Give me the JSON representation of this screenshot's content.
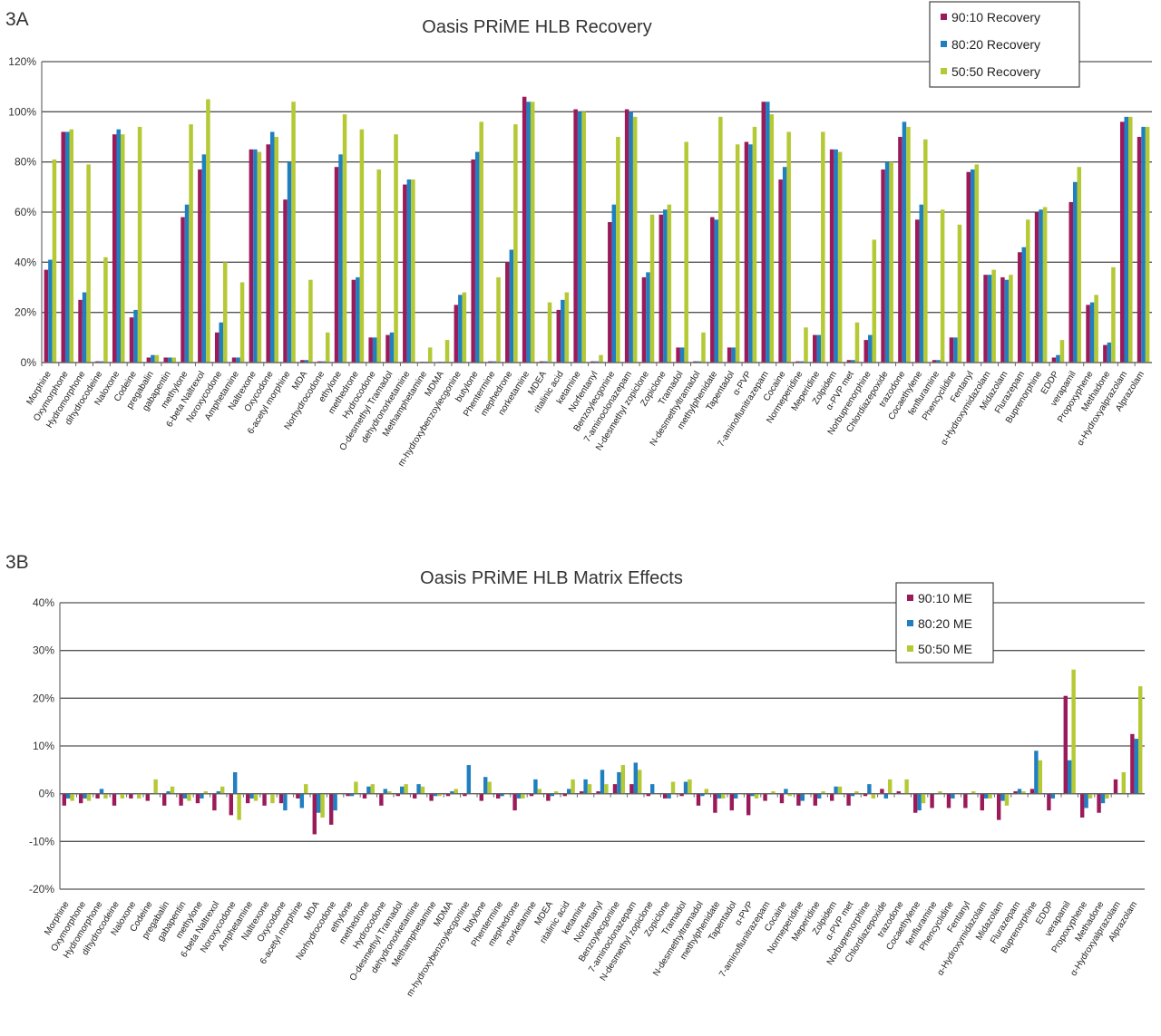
{
  "chart_data": [
    {
      "panel": "3A",
      "type": "bar",
      "title": "Oasis PRiME HLB Recovery",
      "ylim": [
        0,
        120
      ],
      "yticks": [
        "0%",
        "20%",
        "40%",
        "60%",
        "80%",
        "100%",
        "120%"
      ],
      "grid": true,
      "legend_placement": "top-right",
      "categories": [
        "Morphine",
        "Oxymorphone",
        "Hydromorphone",
        "dihydrocodeine",
        "Naloxone",
        "Codeine",
        "pregabalin",
        "gabapentin",
        "methylone",
        "6-beta Naltrexol",
        "Noroxycodone",
        "Amphetamine",
        "Naltrexone",
        "Oxycodone",
        "6-acetyl morphine",
        "MDA",
        "Norhydrocodone",
        "ethylone",
        "methedrone",
        "Hydrocodone",
        "O-desmethyl Tramadol",
        "dehydronorketamine",
        "Methamphetamine",
        "MDMA",
        "m-hydroxybenzoylecgonine",
        "butylone",
        "Phentermine",
        "mephedrone",
        "norketamine",
        "MDEA",
        "ritalinic acid",
        "ketamine",
        "Norfentanyl",
        "Benzoylecgonine",
        "7-aminoclonazepam",
        "N-desmethyl zopiclone",
        "Zopiclone",
        "Tramadol",
        "N-desmethyltramadol",
        "methylphenidate",
        "Tapentadol",
        "α-PVP",
        "7-aminoflunitrazepam",
        "Cocaine",
        "Normeperidine",
        "Meperidine",
        "Zolpidem",
        "α-PVP met",
        "Norbuprenorphine",
        "Chlordiazepoxide",
        "trazodone",
        "Cocaethylene",
        "fenfluramine",
        "Phencyclidine",
        "Fentanyl",
        "α-Hydroxymidazolam",
        "Midazolam",
        "Flurazepam",
        "Buprenorphine",
        "EDDP",
        "verapamil",
        "Propoxyphene",
        "Methadone",
        "α-Hydroxyalprazolam",
        "Alprazolam"
      ],
      "series": [
        {
          "name": "90:10 Recovery",
          "color": "#9b1b5a",
          "values": [
            37,
            92,
            25,
            0.5,
            91,
            18,
            2,
            2,
            58,
            77,
            12,
            2,
            85,
            87,
            65,
            1,
            0.5,
            78,
            33,
            10,
            11,
            71,
            0.3,
            0.3,
            23,
            81,
            0.5,
            40,
            106,
            0.5,
            21,
            101,
            0.5,
            56,
            101,
            34,
            59,
            6,
            0.5,
            58,
            6,
            88,
            104,
            73,
            0.5,
            11,
            85,
            1,
            9,
            77,
            90,
            57,
            1,
            10,
            76,
            35,
            34,
            44,
            60,
            2,
            64,
            23,
            7,
            96,
            90
          ]
        },
        {
          "name": "80:20 Recovery",
          "color": "#1f7fc0",
          "values": [
            41,
            92,
            28,
            0.5,
            93,
            21,
            3,
            2,
            63,
            83,
            16,
            2,
            85,
            92,
            80,
            1,
            0.5,
            83,
            34,
            10,
            12,
            73,
            0.3,
            0.3,
            27,
            84,
            0.5,
            45,
            104,
            0.5,
            25,
            100,
            0.5,
            63,
            100,
            36,
            61,
            6,
            0.5,
            57,
            6,
            87,
            104,
            78,
            0.5,
            11,
            85,
            1,
            11,
            80,
            96,
            63,
            1,
            10,
            77,
            35,
            33,
            46,
            61,
            3,
            72,
            24,
            8,
            98,
            94
          ]
        },
        {
          "name": "50:50 Recovery",
          "color": "#b5c935",
          "values": [
            81,
            93,
            79,
            42,
            91,
            94,
            3,
            2,
            95,
            105,
            40,
            32,
            84,
            90,
            104,
            33,
            12,
            99,
            93,
            77,
            91,
            73,
            6,
            9,
            28,
            96,
            34,
            95,
            104,
            24,
            28,
            100,
            3,
            90,
            98,
            59,
            63,
            88,
            12,
            98,
            87,
            94,
            99,
            92,
            14,
            92,
            84,
            16,
            49,
            80,
            94,
            89,
            61,
            55,
            79,
            37,
            35,
            57,
            62,
            9,
            78,
            27,
            38,
            98,
            94
          ]
        }
      ]
    },
    {
      "panel": "3B",
      "type": "bar",
      "title": "Oasis PRiME HLB Matrix Effects",
      "ylim": [
        -20,
        40
      ],
      "yticks": [
        "-20%",
        "-10%",
        "0%",
        "10%",
        "20%",
        "30%",
        "40%"
      ],
      "grid": true,
      "legend_placement": "top-right",
      "categories": [
        "Morphine",
        "Oxymorphone",
        "Hydromorphone",
        "dihydrocodeine",
        "Naloxone",
        "Codeine",
        "pregabalin",
        "gabapentin",
        "methylone",
        "6-beta Naltrexol",
        "Noroxycodone",
        "Amphetamine",
        "Naltrexone",
        "Oxycodone",
        "6-acetyl morphine",
        "MDA",
        "Norhydrocodone",
        "ethylone",
        "methedrone",
        "Hydrocodone",
        "O-desmethyl Tramadol",
        "dehydronorketamine",
        "Methamphetamine",
        "MDMA",
        "m-hydroxybenzoylecgonine",
        "butylone",
        "Phentermine",
        "mephedrone",
        "norketamine",
        "MDEA",
        "ritalinic acid",
        "ketamine",
        "Norfentanyl",
        "Benzoylecgonine",
        "7-aminoclonazepam",
        "N-desmethyl zopiclone",
        "Zopiclone",
        "Tramadol",
        "N-desmethyltramadol",
        "methylphenidate",
        "Tapentadol",
        "α-PVP",
        "7-aminoflunitrazepam",
        "Cocaine",
        "Normeperidine",
        "Meperidine",
        "Zolpidem",
        "α-PVP met",
        "Norbuprenorphine",
        "Chlordiazepoxide",
        "trazodone",
        "Cocaethylene",
        "fenfluramine",
        "Phencyclidine",
        "Fentanyl",
        "α-Hydroxymidazolam",
        "Midazolam",
        "Flurazepam",
        "Buprenorphine",
        "EDDP",
        "verapamil",
        "Propoxyphene",
        "Methadone",
        "α-Hydroxyalprazolam",
        "Alprazolam"
      ],
      "series": [
        {
          "name": "90:10 ME",
          "color": "#9b1b5a",
          "values": [
            -2.5,
            -2,
            -1,
            -2.5,
            -1,
            -1.5,
            -2.5,
            -2.5,
            -2,
            -3.5,
            -4.5,
            -2,
            -2.5,
            -2,
            -1,
            -8.5,
            -6.5,
            -0.5,
            -1,
            -2.5,
            -0.5,
            -1,
            -1.5,
            -0.5,
            -0.5,
            -1.5,
            -1,
            -3.5,
            -0.5,
            -1.5,
            -0.5,
            0.5,
            0.5,
            2,
            2,
            -0.5,
            -1,
            -0.5,
            -2.5,
            -4,
            -3.5,
            -4.5,
            -1.5,
            -2,
            -2.5,
            -2.5,
            -1.5,
            -2.5,
            -0.5,
            1,
            0.5,
            -4,
            -3,
            -3,
            -3,
            -3.5,
            -5.5,
            0.5,
            1,
            -3.5,
            20.5,
            -5,
            -4,
            3,
            12.5
          ]
        },
        {
          "name": "80:20 ME",
          "color": "#1f7fc0",
          "values": [
            -1,
            -1,
            1,
            0,
            0,
            0,
            0.5,
            -1,
            -1,
            0.5,
            4.5,
            -1,
            0,
            -3.5,
            -3,
            -4,
            -3.5,
            -0.5,
            1.5,
            1,
            1.5,
            2,
            -0.5,
            0.5,
            6,
            3.5,
            -0.5,
            -1,
            3,
            -0.5,
            1,
            3,
            5,
            4.5,
            6.5,
            2,
            -1,
            2.5,
            -0.5,
            -1,
            -1,
            -0.5,
            0,
            1,
            -1.5,
            -1,
            1.5,
            -0.5,
            2,
            -1,
            0,
            -3.5,
            0,
            -1,
            0,
            -1,
            -1.5,
            1,
            9,
            -1,
            7,
            -3,
            -2,
            0,
            11.5
          ]
        },
        {
          "name": "50:50 ME",
          "color": "#b5c935",
          "values": [
            -1.5,
            -1.5,
            -1,
            -1,
            -1,
            3,
            1.5,
            -1.5,
            0.5,
            1.5,
            -5.5,
            -1.5,
            -2,
            0,
            2,
            -5,
            0,
            2.5,
            2,
            0.5,
            2,
            1.5,
            -0.5,
            1,
            0,
            2.5,
            0,
            -1,
            1,
            0.5,
            3,
            2,
            2,
            6,
            5,
            0,
            2.5,
            3,
            1,
            -1,
            0,
            -1,
            0.5,
            -0.5,
            0,
            0.5,
            1.5,
            0.5,
            -1,
            3,
            3,
            -2,
            0.5,
            0,
            0.5,
            -1,
            -2.5,
            0.5,
            7,
            0,
            26,
            -1,
            -1,
            4.5,
            22.5
          ]
        }
      ]
    }
  ]
}
